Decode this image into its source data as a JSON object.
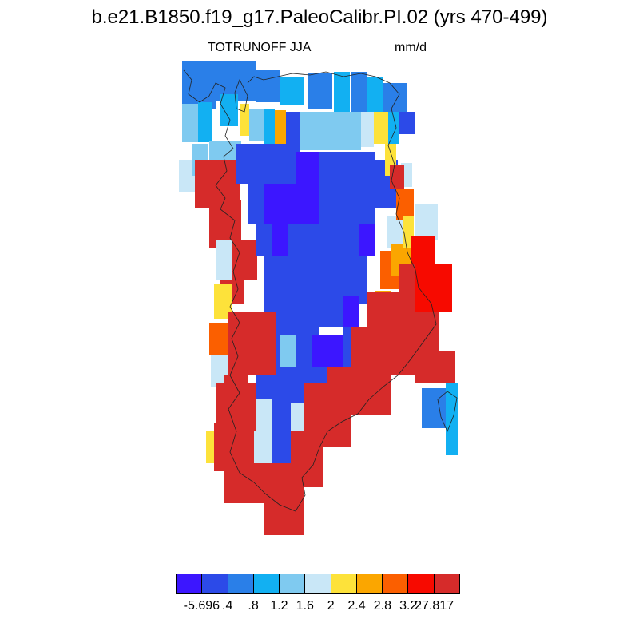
{
  "title": "b.e21.B1850.f19_g17.PaleoCalibr.PI.02 (yrs 470-499)",
  "variable": "TOTRUNOFF JJA",
  "units": "mm/d",
  "colorbar": {
    "colors": [
      "#3c16ff",
      "#2c4ae8",
      "#2a7fe8",
      "#12b0f2",
      "#7fcaf0",
      "#c9e7f7",
      "#fde23a",
      "#fba600",
      "#fb5f00",
      "#f70a00",
      "#d62b2a"
    ],
    "labels": [
      "-5.696",
      ".4",
      ".8",
      "1.2",
      "1.6",
      "2",
      "2.4",
      "2.8",
      "3.2",
      "27.817"
    ]
  },
  "map": {
    "legend_class_colors": {
      "0": "#3c16ff",
      "1": "#2c4ae8",
      "2": "#2a7fe8",
      "3": "#12b0f2",
      "4": "#7fcaf0",
      "5": "#c9e7f7",
      "6": "#fde23a",
      "7": "#fba600",
      "8": "#fb5f00",
      "9": "#f70a00",
      "10": "#d62b2a"
    }
  }
}
